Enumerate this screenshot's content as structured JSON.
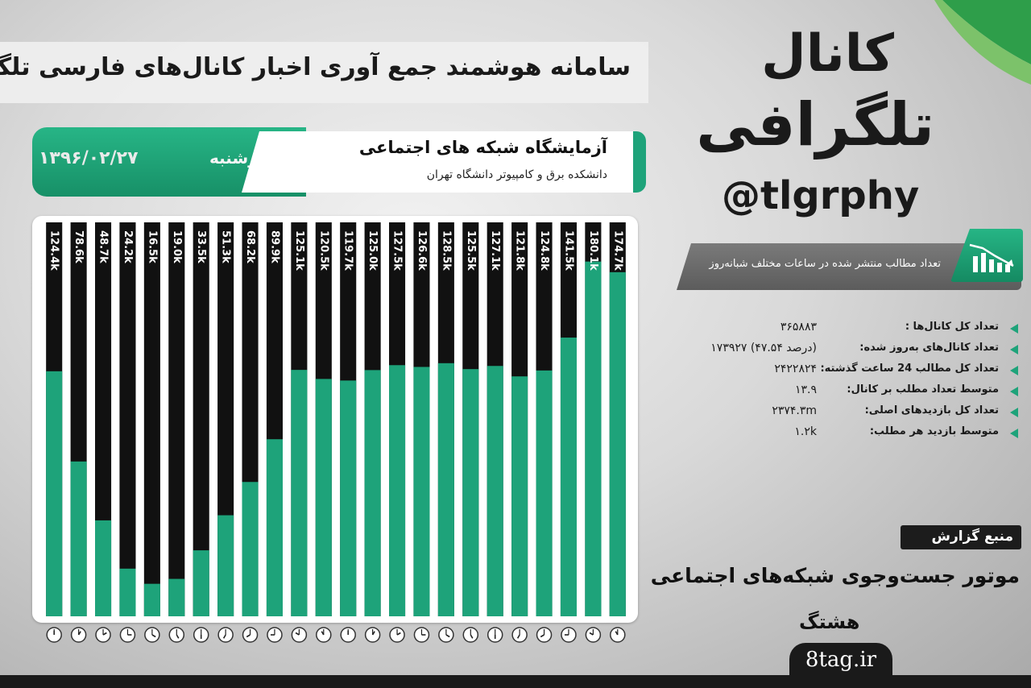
{
  "header": {
    "title": "سامانه هوشمند جمع آوری اخبار کانال‌های فارسی تلگرام"
  },
  "date_panel": {
    "day": "چهارشنبه",
    "date": "۱۳۹۶/۰۲/۲۷"
  },
  "lab": {
    "title": "آزمایشگاه شبکه های اجتماعی",
    "subtitle": "دانشکده برق و کامپیوتر دانشگاه تهران"
  },
  "brand": {
    "line1": "کانال",
    "line2": "تلگرافی",
    "handle": "@tlgrphy"
  },
  "stat_banner": {
    "text": "تعداد مطالب منتشر شده در ساعات مختلف شبانه‌روز"
  },
  "stats": [
    {
      "label": "تعداد کل کانال‌ها :",
      "value": "۳۶۵۸۸۳"
    },
    {
      "label": "تعداد کانال‌های به‌روز شده:",
      "value": "۱۷۳۹۲۷ (۴۷.۵۴ درصد)"
    },
    {
      "label": "تعداد کل مطالب 24 ساعت گذشته:",
      "value": "۲۴۲۲۸۲۴"
    },
    {
      "label": "متوسط تعداد مطلب بر کانال:",
      "value": "۱۳.۹"
    },
    {
      "label": "تعداد کل بازدیدهای اصلی:",
      "value": "۲۳۷۴.۳m"
    },
    {
      "label": "متوسط بازدید هر مطلب:",
      "value": "۱.۲k"
    }
  ],
  "source": {
    "badge": "منبع گزارش",
    "line1": "موتور جست‌وجوی شبکه‌های اجتماعی",
    "line2": "هشتگ",
    "site": "8tag.ir"
  },
  "colors": {
    "accent": "#1ea37a",
    "bar_dark": "#111111",
    "bar_green": "#1ea37a"
  },
  "chart_data": {
    "type": "bar",
    "categories": [
      "0",
      "1",
      "2",
      "3",
      "4",
      "5",
      "6",
      "7",
      "8",
      "9",
      "10",
      "11",
      "12",
      "13",
      "14",
      "15",
      "16",
      "17",
      "18",
      "19",
      "20",
      "21",
      "22",
      "23"
    ],
    "values": [
      124.4,
      78.6,
      48.7,
      24.2,
      16.5,
      19.0,
      33.5,
      51.3,
      68.2,
      89.9,
      125.1,
      120.5,
      119.7,
      125.0,
      127.5,
      126.6,
      128.5,
      125.5,
      127.1,
      121.8,
      124.8,
      141.5,
      180.1,
      174.7
    ],
    "labels": [
      "124.4k",
      "78.6k",
      "48.7k",
      "24.2k",
      "16.5k",
      "19.0k",
      "33.5k",
      "51.3k",
      "68.2k",
      "89.9k",
      "125.1k",
      "120.5k",
      "119.7k",
      "125.0k",
      "127.5k",
      "126.6k",
      "128.5k",
      "125.5k",
      "127.1k",
      "121.8k",
      "124.8k",
      "141.5k",
      "180.1k",
      "174.7k"
    ],
    "unit": "k",
    "ylim": [
      0,
      200
    ],
    "x_axis": "clock icons, hours 0 to 23",
    "grid": false
  }
}
